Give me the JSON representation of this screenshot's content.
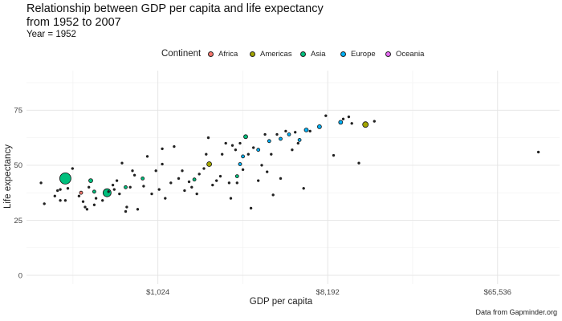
{
  "chart_data": {
    "type": "scatter",
    "title": [
      "Relationship between GDP per capita and life expectancy",
      "from 1952 to 2007"
    ],
    "subtitle": "Year = 1952",
    "xlabel": "GDP per capita",
    "ylabel": "Life expectancy",
    "x_scale": "log2",
    "xlim": [
      205,
      140000
    ],
    "ylim": [
      -4,
      93
    ],
    "x_ticks": [
      {
        "value": 1024,
        "label": "$1,024"
      },
      {
        "value": 8192,
        "label": "$8,192"
      },
      {
        "value": 65536,
        "label": "$65,536"
      }
    ],
    "y_ticks": [
      {
        "value": 0,
        "label": "0"
      },
      {
        "value": 25,
        "label": "25"
      },
      {
        "value": 50,
        "label": "50"
      },
      {
        "value": 75,
        "label": "75"
      }
    ],
    "grid": true,
    "legend": {
      "title": "Continent",
      "placement": "top",
      "items": [
        {
          "name": "Africa",
          "color": "#F8766D"
        },
        {
          "name": "Americas",
          "color": "#A3A500"
        },
        {
          "name": "Asia",
          "color": "#00BF7D"
        },
        {
          "name": "Europe",
          "color": "#00B0F6"
        },
        {
          "name": "Oceania",
          "color": "#E76BF3"
        }
      ]
    },
    "caption": "Data from Gapminder.org",
    "points": [
      [
        330,
        44,
        "Asia",
        14
      ],
      [
        550,
        37.5,
        "Asia",
        10
      ],
      [
        1920,
        50.5,
        "Americas",
        6
      ],
      [
        13000,
        68.5,
        "Americas",
        7
      ],
      [
        3000,
        63,
        "Asia",
        5
      ],
      [
        6300,
        66,
        "Europe",
        5
      ],
      [
        7400,
        67.5,
        "Europe",
        5
      ],
      [
        9600,
        69.5,
        "Europe",
        5
      ],
      [
        450,
        43,
        "Asia",
        5
      ],
      [
        470,
        38,
        "Asia",
        4
      ],
      [
        400,
        37.5,
        "Africa",
        4
      ],
      [
        690,
        40,
        "Asia",
        4
      ],
      [
        850,
        44,
        "Asia",
        4
      ],
      [
        1600,
        43.5,
        "Asia",
        4
      ],
      [
        2700,
        45,
        "Asia",
        4
      ],
      [
        2800,
        50.5,
        "Europe",
        4
      ],
      [
        2900,
        54,
        "Europe",
        4
      ],
      [
        3500,
        57,
        "Europe",
        4
      ],
      [
        4000,
        61,
        "Europe",
        4
      ],
      [
        4600,
        62,
        "Europe",
        4
      ],
      [
        5100,
        64,
        "Europe",
        4
      ],
      [
        5800,
        61.5,
        "Europe",
        4
      ],
      [
        245,
        42,
        "Africa",
        3
      ],
      [
        255,
        32.5,
        "Africa",
        3
      ],
      [
        290,
        36,
        "Africa",
        3
      ],
      [
        300,
        38.5,
        "Africa",
        3
      ],
      [
        310,
        39,
        "Africa",
        3
      ],
      [
        310,
        34,
        "Africa",
        3
      ],
      [
        330,
        34,
        "Africa",
        3
      ],
      [
        340,
        39.5,
        "Africa",
        3
      ],
      [
        360,
        48.5,
        "Asia",
        3
      ],
      [
        390,
        36,
        "Africa",
        3
      ],
      [
        410,
        33.5,
        "Africa",
        3
      ],
      [
        420,
        31,
        "Africa",
        3
      ],
      [
        430,
        30,
        "Africa",
        3
      ],
      [
        440,
        40,
        "Africa",
        3
      ],
      [
        470,
        32,
        "Africa",
        3
      ],
      [
        480,
        35,
        "Africa",
        3
      ],
      [
        520,
        34,
        "Africa",
        3
      ],
      [
        560,
        38,
        "Africa",
        3
      ],
      [
        590,
        41,
        "Africa",
        3
      ],
      [
        600,
        39,
        "Africa",
        3
      ],
      [
        620,
        43,
        "Africa",
        3
      ],
      [
        640,
        37,
        "Africa",
        3
      ],
      [
        660,
        51,
        "Africa",
        3
      ],
      [
        690,
        29,
        "Africa",
        3
      ],
      [
        700,
        31,
        "Africa",
        3
      ],
      [
        730,
        40,
        "Africa",
        3
      ],
      [
        750,
        47.5,
        "Africa",
        3
      ],
      [
        770,
        45.5,
        "Africa",
        3
      ],
      [
        800,
        30,
        "Africa",
        3
      ],
      [
        860,
        40.5,
        "Africa",
        3
      ],
      [
        900,
        54,
        "Africa",
        3
      ],
      [
        950,
        37,
        "Africa",
        3
      ],
      [
        1000,
        47.5,
        "Africa",
        3
      ],
      [
        1040,
        39,
        "Africa",
        3
      ],
      [
        1080,
        50.5,
        "Africa",
        3
      ],
      [
        1080,
        57.5,
        "Africa",
        3
      ],
      [
        1120,
        35,
        "Africa",
        3
      ],
      [
        1200,
        42,
        "Africa",
        3
      ],
      [
        1250,
        58.5,
        "Africa",
        3
      ],
      [
        1320,
        44,
        "Africa",
        3
      ],
      [
        1380,
        47.5,
        "Africa",
        3
      ],
      [
        1420,
        38.5,
        "Africa",
        3
      ],
      [
        1500,
        42.5,
        "Africa",
        3
      ],
      [
        1550,
        40,
        "Africa",
        3
      ],
      [
        1650,
        37,
        "Africa",
        3
      ],
      [
        1700,
        46,
        "Africa",
        3
      ],
      [
        1800,
        48.5,
        "Africa",
        3
      ],
      [
        1850,
        55,
        "Africa",
        3
      ],
      [
        1900,
        62.5,
        "Africa",
        3
      ],
      [
        2000,
        41,
        "Africa",
        3
      ],
      [
        2100,
        43,
        "Africa",
        3
      ],
      [
        2200,
        45,
        "Africa",
        3
      ],
      [
        2250,
        55,
        "Africa",
        3
      ],
      [
        2350,
        60,
        "Africa",
        3
      ],
      [
        2450,
        42,
        "Africa",
        3
      ],
      [
        2500,
        35,
        "Africa",
        3
      ],
      [
        2550,
        59,
        "Africa",
        3
      ],
      [
        2650,
        57,
        "Africa",
        3
      ],
      [
        2700,
        42,
        "Africa",
        3
      ],
      [
        2800,
        60,
        "Africa",
        3
      ],
      [
        2900,
        48,
        "Africa",
        3
      ],
      [
        3100,
        55,
        "Africa",
        3
      ],
      [
        3200,
        30.5,
        "Africa",
        3
      ],
      [
        3300,
        58,
        "Africa",
        3
      ],
      [
        3500,
        43,
        "Africa",
        3
      ],
      [
        3650,
        50,
        "Africa",
        3
      ],
      [
        3800,
        64,
        "Africa",
        3
      ],
      [
        3900,
        47,
        "Africa",
        3
      ],
      [
        4100,
        55,
        "Africa",
        3
      ],
      [
        4200,
        36.5,
        "Africa",
        3
      ],
      [
        4400,
        64,
        "Africa",
        3
      ],
      [
        4600,
        44,
        "Africa",
        3
      ],
      [
        4900,
        65.5,
        "Africa",
        3
      ],
      [
        5300,
        57,
        "Africa",
        3
      ],
      [
        5500,
        65,
        "Africa",
        3
      ],
      [
        5700,
        60,
        "Africa",
        3
      ],
      [
        6100,
        39.5,
        "Africa",
        3
      ],
      [
        6600,
        65.5,
        "Africa",
        3
      ],
      [
        8000,
        72.5,
        "Africa",
        3
      ],
      [
        8800,
        54.5,
        "Africa",
        3
      ],
      [
        9900,
        71,
        "Africa",
        3
      ],
      [
        10600,
        72,
        "Africa",
        3
      ],
      [
        11000,
        69,
        "Africa",
        3
      ],
      [
        12000,
        51,
        "Africa",
        3
      ],
      [
        14500,
        70,
        "Africa",
        3
      ],
      [
        108000,
        56,
        "Africa",
        3
      ]
    ]
  }
}
